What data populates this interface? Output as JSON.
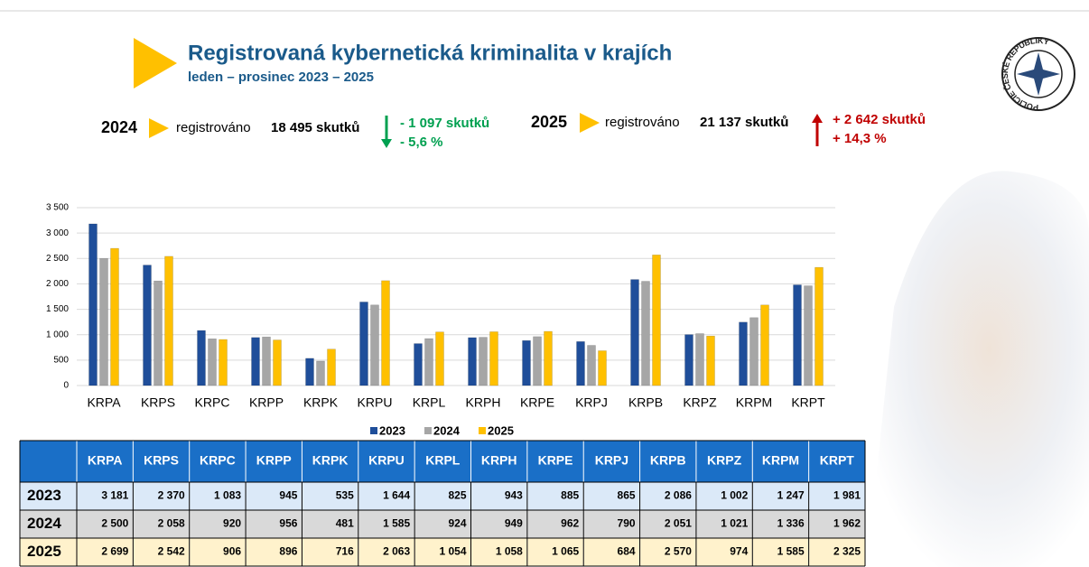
{
  "header": {
    "title": "Registrovaná kybernetická kriminalita v krajích",
    "subtitle": "leden – prosinec 2023 – 2025"
  },
  "summary": [
    {
      "year": "2024",
      "text": "registrováno",
      "count": "18 495 skutků",
      "change": "- 1 097 skutků",
      "change_pct": "- 5,6 %"
    },
    {
      "year": "2025",
      "text": "registrováno",
      "count": "21 137 skutků",
      "change": "+ 2 642 skutků",
      "change_pct": "+ 14,3 %"
    }
  ],
  "logo": {
    "text": "POLICIE ČESKÉ REPUBLIKY"
  },
  "chart_data": {
    "type": "bar",
    "categories": [
      "KRPA",
      "KRPS",
      "KRPC",
      "KRPP",
      "KRPK",
      "KRPU",
      "KRPL",
      "KRPH",
      "KRPE",
      "KRPJ",
      "KRPB",
      "KRPZ",
      "KRPM",
      "KRPT"
    ],
    "series": [
      {
        "name": "2023",
        "color": "#1f4e9a",
        "values": [
          3181,
          2370,
          1083,
          945,
          535,
          1644,
          825,
          943,
          885,
          865,
          2086,
          1002,
          1247,
          1981
        ],
        "value_labels": [
          "3 181",
          "2 370",
          "1 083",
          "945",
          "535",
          "1 644",
          "825",
          "943",
          "885",
          "865",
          "2 086",
          "1 002",
          "1 247",
          "1 981"
        ]
      },
      {
        "name": "2024",
        "color": "#a6a6a6",
        "values": [
          2500,
          2058,
          920,
          956,
          481,
          1585,
          924,
          949,
          962,
          790,
          2051,
          1021,
          1336,
          1962
        ],
        "value_labels": [
          "2 500",
          "2 058",
          "920",
          "956",
          "481",
          "1 585",
          "924",
          "949",
          "962",
          "790",
          "2 051",
          "1 021",
          "1 336",
          "1 962"
        ]
      },
      {
        "name": "2025",
        "color": "#ffc000",
        "values": [
          2699,
          2542,
          906,
          896,
          716,
          2063,
          1054,
          1058,
          1065,
          684,
          2570,
          974,
          1585,
          2325
        ],
        "value_labels": [
          "2 699",
          "2 542",
          "906",
          "896",
          "716",
          "2 063",
          "1 054",
          "1 058",
          "1 065",
          "684",
          "2 570",
          "974",
          "1 585",
          "2 325"
        ]
      }
    ],
    "ylim": [
      0,
      3500
    ],
    "yticks": [
      0,
      500,
      {
        "value": 1000,
        "label": "1 000"
      },
      {
        "value": 1500,
        "label": "1 500"
      },
      {
        "value": 2000,
        "label": "2 000"
      },
      {
        "value": 2500,
        "label": "2 500"
      },
      {
        "value": 3000,
        "label": "3 000"
      },
      {
        "value": 3500,
        "label": "3 500"
      }
    ],
    "grid": true,
    "legend": "bottom"
  }
}
